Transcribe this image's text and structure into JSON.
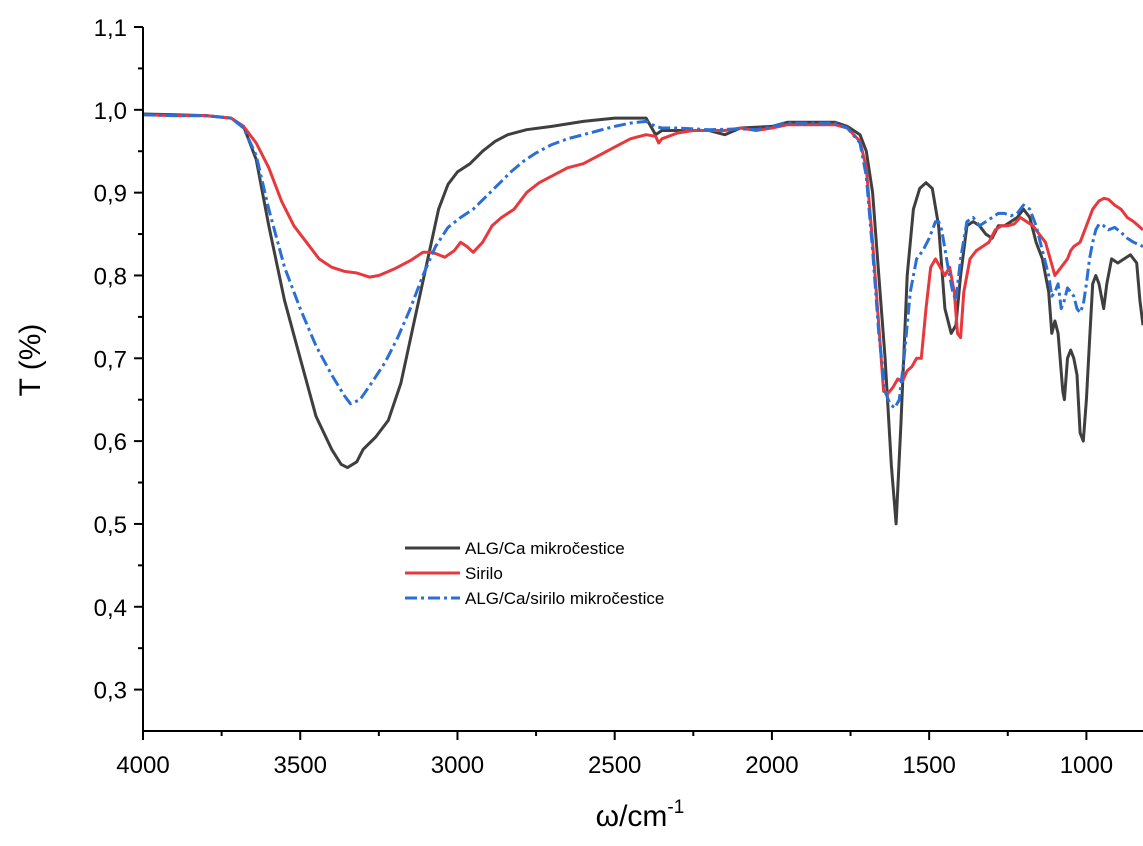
{
  "chart_data": {
    "type": "line",
    "title": "",
    "xlabel": "ω/cm",
    "xlabel_superscript": "-1",
    "ylabel": "T (%)",
    "xlim": [
      4000,
      820
    ],
    "ylim": [
      0.25,
      1.1
    ],
    "x_reversed": true,
    "x_ticks": [
      4000,
      3500,
      3000,
      2500,
      2000,
      1500,
      1000
    ],
    "x_tick_labels": [
      "4000",
      "3500",
      "3000",
      "2500",
      "2000",
      "1500",
      "1000"
    ],
    "y_ticks": [
      0.3,
      0.4,
      0.5,
      0.6,
      0.7,
      0.8,
      0.9,
      1.0,
      1.1
    ],
    "y_tick_labels": [
      "0,3",
      "0,4",
      "0,5",
      "0,6",
      "0,7",
      "0,8",
      "0,9",
      "1,0",
      "1,1"
    ],
    "grid": false,
    "legend_position": "center-left",
    "series": [
      {
        "name": "ALG/Ca mikročestice",
        "color": "#3f3f3f",
        "dash": "solid",
        "points": [
          [
            4000,
            0.995
          ],
          [
            3900,
            0.994
          ],
          [
            3800,
            0.993
          ],
          [
            3720,
            0.99
          ],
          [
            3680,
            0.98
          ],
          [
            3640,
            0.94
          ],
          [
            3600,
            0.86
          ],
          [
            3550,
            0.77
          ],
          [
            3500,
            0.7
          ],
          [
            3450,
            0.63
          ],
          [
            3400,
            0.59
          ],
          [
            3370,
            0.572
          ],
          [
            3350,
            0.568
          ],
          [
            3320,
            0.575
          ],
          [
            3300,
            0.59
          ],
          [
            3260,
            0.605
          ],
          [
            3220,
            0.625
          ],
          [
            3180,
            0.67
          ],
          [
            3140,
            0.74
          ],
          [
            3100,
            0.81
          ],
          [
            3060,
            0.88
          ],
          [
            3030,
            0.91
          ],
          [
            3000,
            0.925
          ],
          [
            2960,
            0.935
          ],
          [
            2920,
            0.95
          ],
          [
            2880,
            0.962
          ],
          [
            2840,
            0.97
          ],
          [
            2780,
            0.976
          ],
          [
            2700,
            0.98
          ],
          [
            2600,
            0.986
          ],
          [
            2500,
            0.99
          ],
          [
            2400,
            0.99
          ],
          [
            2370,
            0.97
          ],
          [
            2350,
            0.975
          ],
          [
            2300,
            0.975
          ],
          [
            2200,
            0.975
          ],
          [
            2150,
            0.97
          ],
          [
            2100,
            0.978
          ],
          [
            2000,
            0.98
          ],
          [
            1950,
            0.985
          ],
          [
            1900,
            0.985
          ],
          [
            1800,
            0.985
          ],
          [
            1760,
            0.98
          ],
          [
            1720,
            0.97
          ],
          [
            1700,
            0.95
          ],
          [
            1680,
            0.9
          ],
          [
            1660,
            0.8
          ],
          [
            1640,
            0.7
          ],
          [
            1620,
            0.57
          ],
          [
            1605,
            0.5
          ],
          [
            1590,
            0.62
          ],
          [
            1570,
            0.8
          ],
          [
            1550,
            0.88
          ],
          [
            1530,
            0.905
          ],
          [
            1510,
            0.912
          ],
          [
            1490,
            0.905
          ],
          [
            1470,
            0.86
          ],
          [
            1450,
            0.76
          ],
          [
            1430,
            0.73
          ],
          [
            1415,
            0.74
          ],
          [
            1400,
            0.8
          ],
          [
            1380,
            0.86
          ],
          [
            1360,
            0.865
          ],
          [
            1340,
            0.86
          ],
          [
            1320,
            0.85
          ],
          [
            1300,
            0.845
          ],
          [
            1280,
            0.86
          ],
          [
            1260,
            0.86
          ],
          [
            1240,
            0.865
          ],
          [
            1220,
            0.87
          ],
          [
            1200,
            0.88
          ],
          [
            1180,
            0.87
          ],
          [
            1160,
            0.84
          ],
          [
            1140,
            0.82
          ],
          [
            1120,
            0.78
          ],
          [
            1110,
            0.73
          ],
          [
            1100,
            0.745
          ],
          [
            1090,
            0.73
          ],
          [
            1075,
            0.66
          ],
          [
            1070,
            0.65
          ],
          [
            1060,
            0.7
          ],
          [
            1050,
            0.71
          ],
          [
            1040,
            0.7
          ],
          [
            1030,
            0.68
          ],
          [
            1020,
            0.61
          ],
          [
            1010,
            0.6
          ],
          [
            1000,
            0.65
          ],
          [
            990,
            0.72
          ],
          [
            980,
            0.79
          ],
          [
            970,
            0.8
          ],
          [
            960,
            0.79
          ],
          [
            945,
            0.76
          ],
          [
            935,
            0.79
          ],
          [
            920,
            0.82
          ],
          [
            900,
            0.815
          ],
          [
            880,
            0.82
          ],
          [
            860,
            0.825
          ],
          [
            840,
            0.815
          ],
          [
            830,
            0.77
          ],
          [
            820,
            0.74
          ]
        ]
      },
      {
        "name": "Sirilo",
        "color": "#e8383d",
        "dash": "solid",
        "points": [
          [
            4000,
            0.994
          ],
          [
            3900,
            0.993
          ],
          [
            3800,
            0.993
          ],
          [
            3720,
            0.99
          ],
          [
            3680,
            0.98
          ],
          [
            3640,
            0.96
          ],
          [
            3600,
            0.93
          ],
          [
            3560,
            0.89
          ],
          [
            3520,
            0.86
          ],
          [
            3480,
            0.84
          ],
          [
            3440,
            0.82
          ],
          [
            3400,
            0.81
          ],
          [
            3360,
            0.805
          ],
          [
            3320,
            0.803
          ],
          [
            3280,
            0.798
          ],
          [
            3250,
            0.8
          ],
          [
            3200,
            0.808
          ],
          [
            3150,
            0.818
          ],
          [
            3110,
            0.828
          ],
          [
            3080,
            0.828
          ],
          [
            3040,
            0.822
          ],
          [
            3010,
            0.83
          ],
          [
            2990,
            0.84
          ],
          [
            2970,
            0.835
          ],
          [
            2950,
            0.828
          ],
          [
            2920,
            0.84
          ],
          [
            2890,
            0.86
          ],
          [
            2860,
            0.87
          ],
          [
            2820,
            0.88
          ],
          [
            2780,
            0.9
          ],
          [
            2740,
            0.912
          ],
          [
            2700,
            0.92
          ],
          [
            2650,
            0.93
          ],
          [
            2600,
            0.935
          ],
          [
            2550,
            0.945
          ],
          [
            2500,
            0.955
          ],
          [
            2450,
            0.965
          ],
          [
            2400,
            0.97
          ],
          [
            2370,
            0.968
          ],
          [
            2360,
            0.96
          ],
          [
            2350,
            0.965
          ],
          [
            2300,
            0.972
          ],
          [
            2250,
            0.975
          ],
          [
            2200,
            0.975
          ],
          [
            2150,
            0.975
          ],
          [
            2100,
            0.978
          ],
          [
            2050,
            0.975
          ],
          [
            2000,
            0.978
          ],
          [
            1950,
            0.982
          ],
          [
            1900,
            0.982
          ],
          [
            1800,
            0.982
          ],
          [
            1760,
            0.978
          ],
          [
            1720,
            0.962
          ],
          [
            1700,
            0.93
          ],
          [
            1680,
            0.84
          ],
          [
            1660,
            0.74
          ],
          [
            1645,
            0.66
          ],
          [
            1630,
            0.658
          ],
          [
            1615,
            0.665
          ],
          [
            1600,
            0.675
          ],
          [
            1585,
            0.672
          ],
          [
            1570,
            0.685
          ],
          [
            1555,
            0.69
          ],
          [
            1540,
            0.7
          ],
          [
            1525,
            0.7
          ],
          [
            1510,
            0.76
          ],
          [
            1495,
            0.81
          ],
          [
            1480,
            0.82
          ],
          [
            1465,
            0.81
          ],
          [
            1450,
            0.8
          ],
          [
            1435,
            0.81
          ],
          [
            1420,
            0.78
          ],
          [
            1410,
            0.73
          ],
          [
            1400,
            0.725
          ],
          [
            1390,
            0.78
          ],
          [
            1370,
            0.82
          ],
          [
            1350,
            0.83
          ],
          [
            1330,
            0.835
          ],
          [
            1310,
            0.84
          ],
          [
            1290,
            0.855
          ],
          [
            1270,
            0.86
          ],
          [
            1250,
            0.86
          ],
          [
            1230,
            0.862
          ],
          [
            1210,
            0.87
          ],
          [
            1190,
            0.865
          ],
          [
            1170,
            0.86
          ],
          [
            1150,
            0.85
          ],
          [
            1130,
            0.84
          ],
          [
            1115,
            0.82
          ],
          [
            1100,
            0.8
          ],
          [
            1080,
            0.81
          ],
          [
            1060,
            0.82
          ],
          [
            1050,
            0.83
          ],
          [
            1040,
            0.835
          ],
          [
            1020,
            0.84
          ],
          [
            1000,
            0.86
          ],
          [
            980,
            0.88
          ],
          [
            960,
            0.89
          ],
          [
            945,
            0.893
          ],
          [
            930,
            0.892
          ],
          [
            910,
            0.885
          ],
          [
            890,
            0.88
          ],
          [
            870,
            0.87
          ],
          [
            850,
            0.865
          ],
          [
            820,
            0.855
          ]
        ]
      },
      {
        "name": "ALG/Ca/sirilo mikročestice",
        "color": "#2a6fd6",
        "dash": "dashdot",
        "points": [
          [
            4000,
            0.994
          ],
          [
            3900,
            0.993
          ],
          [
            3800,
            0.993
          ],
          [
            3720,
            0.99
          ],
          [
            3680,
            0.978
          ],
          [
            3640,
            0.945
          ],
          [
            3600,
            0.88
          ],
          [
            3550,
            0.81
          ],
          [
            3500,
            0.76
          ],
          [
            3450,
            0.715
          ],
          [
            3400,
            0.68
          ],
          [
            3360,
            0.655
          ],
          [
            3340,
            0.645
          ],
          [
            3310,
            0.65
          ],
          [
            3270,
            0.672
          ],
          [
            3230,
            0.695
          ],
          [
            3190,
            0.725
          ],
          [
            3150,
            0.76
          ],
          [
            3110,
            0.8
          ],
          [
            3070,
            0.835
          ],
          [
            3030,
            0.858
          ],
          [
            2990,
            0.87
          ],
          [
            2950,
            0.88
          ],
          [
            2910,
            0.895
          ],
          [
            2870,
            0.91
          ],
          [
            2830,
            0.925
          ],
          [
            2790,
            0.938
          ],
          [
            2750,
            0.948
          ],
          [
            2700,
            0.958
          ],
          [
            2650,
            0.965
          ],
          [
            2600,
            0.97
          ],
          [
            2550,
            0.975
          ],
          [
            2500,
            0.98
          ],
          [
            2450,
            0.984
          ],
          [
            2400,
            0.986
          ],
          [
            2370,
            0.98
          ],
          [
            2350,
            0.978
          ],
          [
            2300,
            0.978
          ],
          [
            2200,
            0.976
          ],
          [
            2100,
            0.977
          ],
          [
            2050,
            0.976
          ],
          [
            2000,
            0.98
          ],
          [
            1950,
            0.984
          ],
          [
            1900,
            0.984
          ],
          [
            1800,
            0.984
          ],
          [
            1760,
            0.978
          ],
          [
            1720,
            0.96
          ],
          [
            1700,
            0.92
          ],
          [
            1680,
            0.83
          ],
          [
            1660,
            0.73
          ],
          [
            1640,
            0.66
          ],
          [
            1625,
            0.645
          ],
          [
            1610,
            0.64
          ],
          [
            1595,
            0.65
          ],
          [
            1580,
            0.7
          ],
          [
            1560,
            0.78
          ],
          [
            1540,
            0.82
          ],
          [
            1520,
            0.83
          ],
          [
            1500,
            0.845
          ],
          [
            1480,
            0.865
          ],
          [
            1470,
            0.865
          ],
          [
            1460,
            0.855
          ],
          [
            1440,
            0.81
          ],
          [
            1425,
            0.78
          ],
          [
            1415,
            0.77
          ],
          [
            1400,
            0.82
          ],
          [
            1380,
            0.865
          ],
          [
            1360,
            0.87
          ],
          [
            1340,
            0.86
          ],
          [
            1320,
            0.865
          ],
          [
            1300,
            0.87
          ],
          [
            1280,
            0.875
          ],
          [
            1260,
            0.875
          ],
          [
            1240,
            0.872
          ],
          [
            1220,
            0.875
          ],
          [
            1200,
            0.885
          ],
          [
            1180,
            0.88
          ],
          [
            1160,
            0.86
          ],
          [
            1140,
            0.83
          ],
          [
            1120,
            0.8
          ],
          [
            1110,
            0.775
          ],
          [
            1100,
            0.78
          ],
          [
            1090,
            0.79
          ],
          [
            1080,
            0.76
          ],
          [
            1070,
            0.77
          ],
          [
            1060,
            0.785
          ],
          [
            1050,
            0.78
          ],
          [
            1040,
            0.775
          ],
          [
            1030,
            0.76
          ],
          [
            1020,
            0.755
          ],
          [
            1010,
            0.765
          ],
          [
            1000,
            0.79
          ],
          [
            990,
            0.82
          ],
          [
            980,
            0.84
          ],
          [
            970,
            0.855
          ],
          [
            960,
            0.862
          ],
          [
            945,
            0.86
          ],
          [
            930,
            0.855
          ],
          [
            910,
            0.858
          ],
          [
            890,
            0.852
          ],
          [
            870,
            0.845
          ],
          [
            850,
            0.84
          ],
          [
            820,
            0.835
          ]
        ]
      }
    ]
  }
}
